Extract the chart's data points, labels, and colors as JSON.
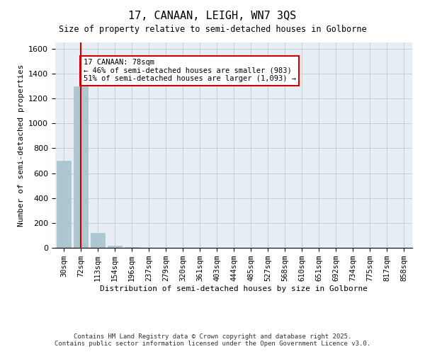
{
  "title_line1": "17, CANAAN, LEIGH, WN7 3QS",
  "title_line2": "Size of property relative to semi-detached houses in Golborne",
  "xlabel": "Distribution of semi-detached houses by size in Golborne",
  "ylabel": "Number of semi-detached properties",
  "categories": [
    "30sqm",
    "72sqm",
    "113sqm",
    "154sqm",
    "196sqm",
    "237sqm",
    "279sqm",
    "320sqm",
    "361sqm",
    "403sqm",
    "444sqm",
    "485sqm",
    "527sqm",
    "568sqm",
    "610sqm",
    "651sqm",
    "692sqm",
    "734sqm",
    "775sqm",
    "817sqm",
    "858sqm"
  ],
  "values": [
    700,
    1300,
    120,
    15,
    5,
    0,
    0,
    0,
    0,
    0,
    0,
    0,
    0,
    0,
    0,
    0,
    0,
    0,
    0,
    0,
    0
  ],
  "bar_color": "#aec6cf",
  "bar_edge_color": "#aec6cf",
  "highlight_bar_color": "#aec6cf",
  "grid_color": "#cccccc",
  "background_color": "#e8eef5",
  "property_size": 78,
  "property_size_label": "17 CANAAN: 78sqm",
  "pct_smaller": 46,
  "count_smaller": 983,
  "pct_larger": 51,
  "count_larger": 1093,
  "vline_color": "#cc0000",
  "annotation_box_color": "#cc0000",
  "ylim": [
    0,
    1650
  ],
  "yticks": [
    0,
    200,
    400,
    600,
    800,
    1000,
    1200,
    1400,
    1600
  ],
  "footer_line1": "Contains HM Land Registry data © Crown copyright and database right 2025.",
  "footer_line2": "Contains public sector information licensed under the Open Government Licence v3.0.",
  "bin_width": 41.5
}
